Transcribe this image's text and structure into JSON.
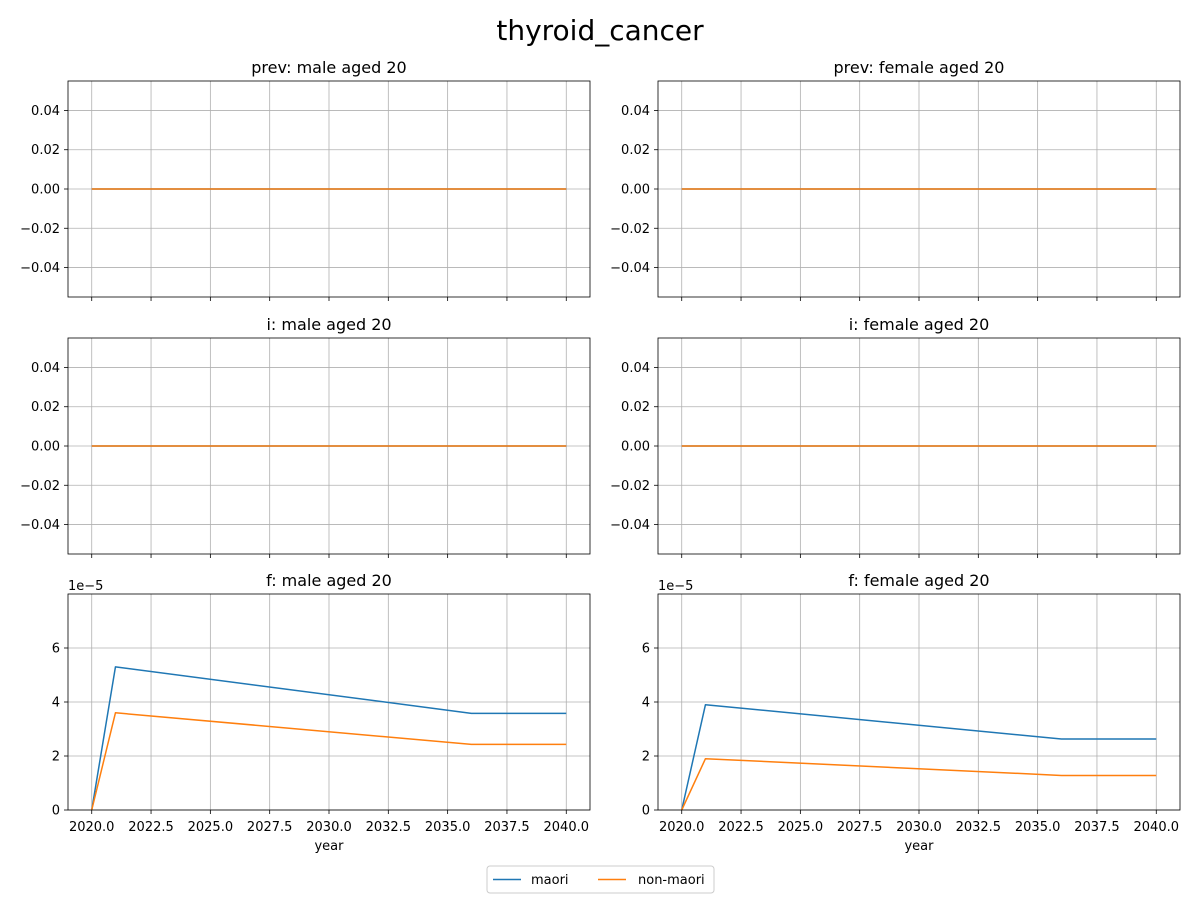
{
  "figure": {
    "title": "thyroid_cancer",
    "legend": [
      "maori",
      "non-maori"
    ]
  },
  "chart_data": [
    {
      "type": "line",
      "title": "prev: male aged 20",
      "xlabel": "",
      "xlim": [
        2019.0,
        2041.0
      ],
      "ylim": [
        -0.055,
        0.055
      ],
      "xticks": [
        2020.0,
        2022.5,
        2025.0,
        2027.5,
        2030.0,
        2032.5,
        2035.0,
        2037.5,
        2040.0
      ],
      "xtick_labels_visible": false,
      "yticks": [
        -0.04,
        -0.02,
        0.0,
        0.02,
        0.04
      ],
      "ytick_labels": [
        "−0.04",
        "−0.02",
        "0.00",
        "0.02",
        "0.04"
      ],
      "offset_text": "",
      "grid": true,
      "series": [
        {
          "name": "maori",
          "color": "#1f77b4",
          "x": [
            2020,
            2040
          ],
          "y": [
            0,
            0
          ]
        },
        {
          "name": "non-maori",
          "color": "#ff7f0e",
          "x": [
            2020,
            2040
          ],
          "y": [
            0,
            0
          ]
        }
      ]
    },
    {
      "type": "line",
      "title": "prev: female aged 20",
      "xlabel": "",
      "xlim": [
        2019.0,
        2041.0
      ],
      "ylim": [
        -0.055,
        0.055
      ],
      "xticks": [
        2020.0,
        2022.5,
        2025.0,
        2027.5,
        2030.0,
        2032.5,
        2035.0,
        2037.5,
        2040.0
      ],
      "xtick_labels_visible": false,
      "yticks": [
        -0.04,
        -0.02,
        0.0,
        0.02,
        0.04
      ],
      "ytick_labels": [
        "−0.04",
        "−0.02",
        "0.00",
        "0.02",
        "0.04"
      ],
      "offset_text": "",
      "grid": true,
      "series": [
        {
          "name": "maori",
          "color": "#1f77b4",
          "x": [
            2020,
            2040
          ],
          "y": [
            0,
            0
          ]
        },
        {
          "name": "non-maori",
          "color": "#ff7f0e",
          "x": [
            2020,
            2040
          ],
          "y": [
            0,
            0
          ]
        }
      ]
    },
    {
      "type": "line",
      "title": "i: male aged 20",
      "xlabel": "",
      "xlim": [
        2019.0,
        2041.0
      ],
      "ylim": [
        -0.055,
        0.055
      ],
      "xticks": [
        2020.0,
        2022.5,
        2025.0,
        2027.5,
        2030.0,
        2032.5,
        2035.0,
        2037.5,
        2040.0
      ],
      "xtick_labels_visible": false,
      "yticks": [
        -0.04,
        -0.02,
        0.0,
        0.02,
        0.04
      ],
      "ytick_labels": [
        "−0.04",
        "−0.02",
        "0.00",
        "0.02",
        "0.04"
      ],
      "offset_text": "",
      "grid": true,
      "series": [
        {
          "name": "maori",
          "color": "#1f77b4",
          "x": [
            2020,
            2040
          ],
          "y": [
            0,
            0
          ]
        },
        {
          "name": "non-maori",
          "color": "#ff7f0e",
          "x": [
            2020,
            2040
          ],
          "y": [
            0,
            0
          ]
        }
      ]
    },
    {
      "type": "line",
      "title": "i: female aged 20",
      "xlabel": "",
      "xlim": [
        2019.0,
        2041.0
      ],
      "ylim": [
        -0.055,
        0.055
      ],
      "xticks": [
        2020.0,
        2022.5,
        2025.0,
        2027.5,
        2030.0,
        2032.5,
        2035.0,
        2037.5,
        2040.0
      ],
      "xtick_labels_visible": false,
      "yticks": [
        -0.04,
        -0.02,
        0.0,
        0.02,
        0.04
      ],
      "ytick_labels": [
        "−0.04",
        "−0.02",
        "0.00",
        "0.02",
        "0.04"
      ],
      "offset_text": "",
      "grid": true,
      "series": [
        {
          "name": "maori",
          "color": "#1f77b4",
          "x": [
            2020,
            2040
          ],
          "y": [
            0,
            0
          ]
        },
        {
          "name": "non-maori",
          "color": "#ff7f0e",
          "x": [
            2020,
            2040
          ],
          "y": [
            0,
            0
          ]
        }
      ]
    },
    {
      "type": "line",
      "title": "f: male aged 20",
      "xlabel": "year",
      "xlim": [
        2019.0,
        2041.0
      ],
      "ylim": [
        0,
        8.0
      ],
      "xticks": [
        2020.0,
        2022.5,
        2025.0,
        2027.5,
        2030.0,
        2032.5,
        2035.0,
        2037.5,
        2040.0
      ],
      "xtick_labels_visible": true,
      "xtick_labels": [
        "2020.0",
        "2022.5",
        "2025.0",
        "2027.5",
        "2030.0",
        "2032.5",
        "2035.0",
        "2037.5",
        "2040.0"
      ],
      "yticks": [
        0,
        2,
        4,
        6
      ],
      "ytick_labels": [
        "0",
        "2",
        "4",
        "6"
      ],
      "offset_text": "1e−5",
      "grid": true,
      "series": [
        {
          "name": "maori",
          "color": "#1f77b4",
          "x": [
            2020,
            2021,
            2036,
            2040
          ],
          "y": [
            0,
            5.3,
            3.58,
            3.58
          ]
        },
        {
          "name": "non-maori",
          "color": "#ff7f0e",
          "x": [
            2020,
            2021,
            2036,
            2040
          ],
          "y": [
            0,
            3.6,
            2.43,
            2.43
          ]
        }
      ]
    },
    {
      "type": "line",
      "title": "f: female aged 20",
      "xlabel": "year",
      "xlim": [
        2019.0,
        2041.0
      ],
      "ylim": [
        0,
        8.0
      ],
      "xticks": [
        2020.0,
        2022.5,
        2025.0,
        2027.5,
        2030.0,
        2032.5,
        2035.0,
        2037.5,
        2040.0
      ],
      "xtick_labels_visible": true,
      "xtick_labels": [
        "2020.0",
        "2022.5",
        "2025.0",
        "2027.5",
        "2030.0",
        "2032.5",
        "2035.0",
        "2037.5",
        "2040.0"
      ],
      "yticks": [
        0,
        2,
        4,
        6
      ],
      "ytick_labels": [
        "0",
        "2",
        "4",
        "6"
      ],
      "offset_text": "1e−5",
      "grid": true,
      "series": [
        {
          "name": "maori",
          "color": "#1f77b4",
          "x": [
            2020,
            2021,
            2036,
            2040
          ],
          "y": [
            0,
            3.9,
            2.63,
            2.63
          ]
        },
        {
          "name": "non-maori",
          "color": "#ff7f0e",
          "x": [
            2020,
            2021,
            2036,
            2040
          ],
          "y": [
            0,
            1.9,
            1.28,
            1.28
          ]
        }
      ]
    }
  ]
}
